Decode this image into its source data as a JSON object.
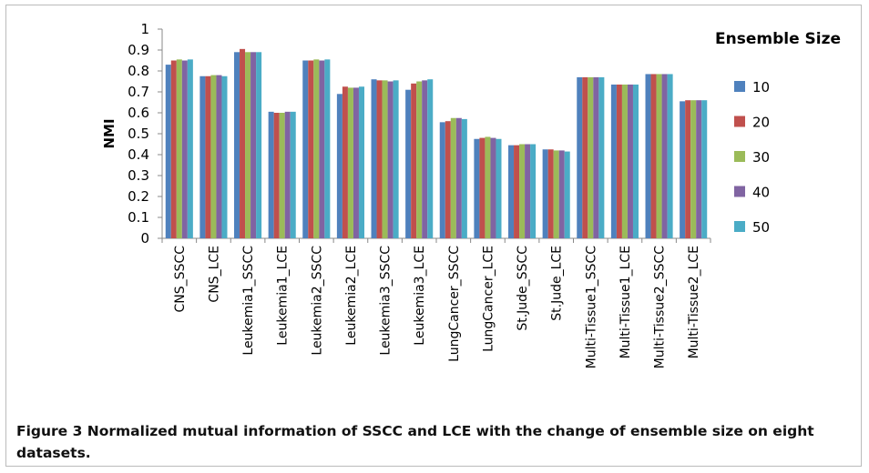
{
  "chart_data": {
    "type": "bar",
    "y_label": "NMI",
    "legend_title": "Ensemble Size",
    "categories": [
      "CNS_SSCC",
      "CNS_LCE",
      "Leukemia1_SSCC",
      "Leukemia1_LCE",
      "Leukemia2_SSCC",
      "Leukemia2_LCE",
      "Leukemia3_SSCC",
      "Leukemia3_LCE",
      "LungCancer_SSCC",
      "LungCancer_LCE",
      "St.Jude_SSCC",
      "St.Jude_LCE",
      "Multi-Tissue1_SSCC",
      "Multi-Tissue1_LCE",
      "Multi-Tissue2_SSCC",
      "Multi-Tissue2_LCE"
    ],
    "series": [
      {
        "name": "10",
        "color": "#4f81bd",
        "values": [
          0.83,
          0.775,
          0.89,
          0.605,
          0.85,
          0.69,
          0.76,
          0.71,
          0.555,
          0.475,
          0.445,
          0.425,
          0.77,
          0.735,
          0.785,
          0.655
        ]
      },
      {
        "name": "20",
        "color": "#c0504d",
        "values": [
          0.85,
          0.775,
          0.905,
          0.6,
          0.85,
          0.725,
          0.755,
          0.74,
          0.56,
          0.48,
          0.445,
          0.425,
          0.77,
          0.735,
          0.785,
          0.66
        ]
      },
      {
        "name": "30",
        "color": "#9bbb59",
        "values": [
          0.855,
          0.78,
          0.89,
          0.6,
          0.855,
          0.72,
          0.755,
          0.75,
          0.575,
          0.485,
          0.45,
          0.42,
          0.77,
          0.735,
          0.785,
          0.66
        ]
      },
      {
        "name": "40",
        "color": "#8064a2",
        "values": [
          0.85,
          0.78,
          0.89,
          0.605,
          0.85,
          0.72,
          0.75,
          0.755,
          0.575,
          0.48,
          0.45,
          0.42,
          0.77,
          0.735,
          0.785,
          0.66
        ]
      },
      {
        "name": "50",
        "color": "#4bacc6",
        "values": [
          0.855,
          0.775,
          0.89,
          0.605,
          0.855,
          0.725,
          0.755,
          0.76,
          0.57,
          0.475,
          0.45,
          0.415,
          0.77,
          0.735,
          0.785,
          0.66
        ]
      }
    ],
    "ylim": [
      0,
      1
    ],
    "yticks": [
      0,
      0.1,
      0.2,
      0.3,
      0.4,
      0.5,
      0.6,
      0.7,
      0.8,
      0.9,
      1
    ],
    "grid": false,
    "legend_position": "right"
  },
  "caption": "Figure 3 Normalized mutual information of SSCC and LCE with the change of ensemble size on eight datasets."
}
